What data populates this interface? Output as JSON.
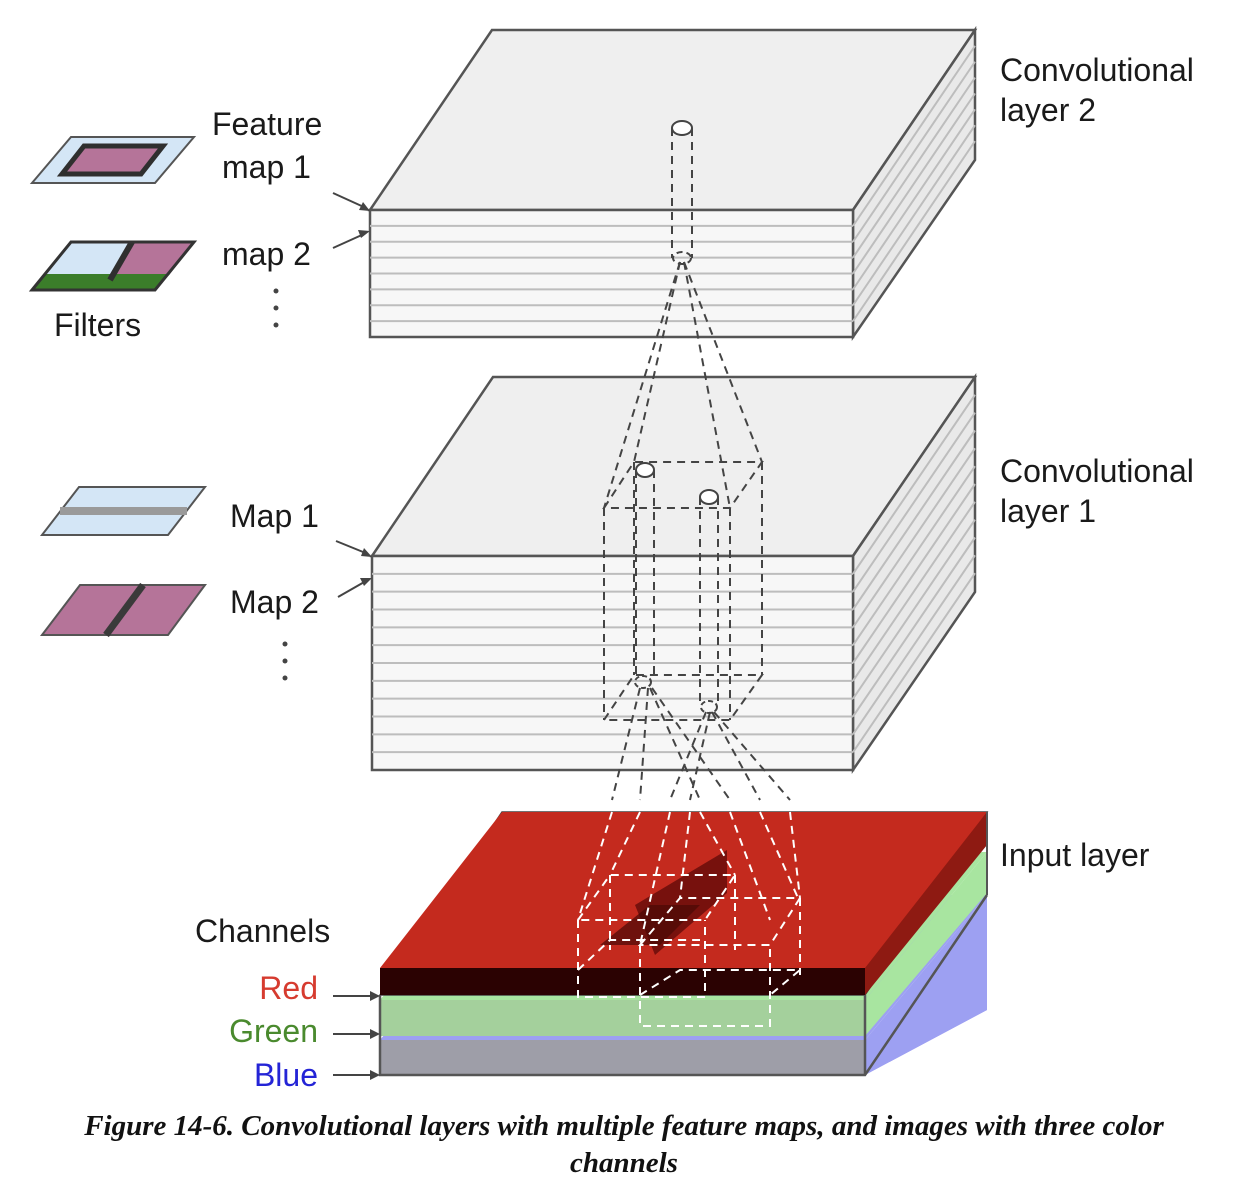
{
  "layers": {
    "conv2": "Convolutional\nlayer 2",
    "conv1": "Convolutional\nlayer 1",
    "input": "Input layer"
  },
  "conv2_labels": {
    "feature": "Feature",
    "map1": "map 1",
    "map2": "map 2",
    "filters": "Filters"
  },
  "conv1_labels": {
    "map1": "Map 1",
    "map2": "Map 2"
  },
  "channels": {
    "heading": "Channels",
    "red": "Red",
    "green": "Green",
    "blue": "Blue"
  },
  "colors": {
    "red_channel": "#c42a1e",
    "green_channel": "#a8e5a0",
    "blue_channel": "#9da0f2",
    "filter_blue": "#d4e6f6",
    "filter_pink": "#b57499",
    "filter_green": "#3b7d2a",
    "red_text": "#d63b2f",
    "green_text": "#4a8a2e",
    "blue_text": "#2424d6"
  },
  "caption": "Figure 14-6. Convolutional layers with multiple feature maps, and images with three color channels",
  "caption_lines": [
    "Figure 14-6. Convolutional layers with multiple feature maps, and images with three color",
    "channels"
  ]
}
